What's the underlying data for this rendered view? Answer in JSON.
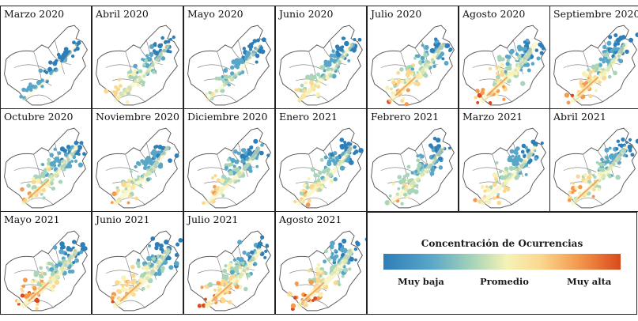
{
  "panels": [
    {
      "label": "Marzo 2020",
      "intensity": 0.15
    },
    {
      "label": "Abril 2020",
      "intensity": 0.55
    },
    {
      "label": "Mayo 2020",
      "intensity": 0.4
    },
    {
      "label": "Junio 2020",
      "intensity": 0.55
    },
    {
      "label": "Julio 2020",
      "intensity": 0.7
    },
    {
      "label": "Agosto 2020",
      "intensity": 0.75
    },
    {
      "label": "Septiembre 2020",
      "intensity": 0.7
    },
    {
      "label": "Octubre 2020",
      "intensity": 0.65
    },
    {
      "label": "Noviembre 2020",
      "intensity": 0.6
    },
    {
      "label": "Diciembre 2020",
      "intensity": 0.6
    },
    {
      "label": "Enero 2021",
      "intensity": 0.6
    },
    {
      "label": "Febrero 2021",
      "intensity": 0.55
    },
    {
      "label": "Marzo 2021",
      "intensity": 0.6
    },
    {
      "label": "Abril 2021",
      "intensity": 0.65
    },
    {
      "label": "Mayo 2021",
      "intensity": 0.8
    },
    {
      "label": "Junio 2021",
      "intensity": 0.8
    },
    {
      "label": "Julio 2021",
      "intensity": 0.8
    },
    {
      "label": "Agosto 2021",
      "intensity": 0.85
    }
  ],
  "legend": {
    "title": "Concentración de Ocurrencias",
    "low": "Muy baja",
    "mid": "Promedio",
    "high": "Muy alta",
    "colors": [
      "#2e7eb8",
      "#58a6c8",
      "#a8d5b8",
      "#f6f2b6",
      "#fbd890",
      "#f39a4e",
      "#d94a1c"
    ]
  }
}
